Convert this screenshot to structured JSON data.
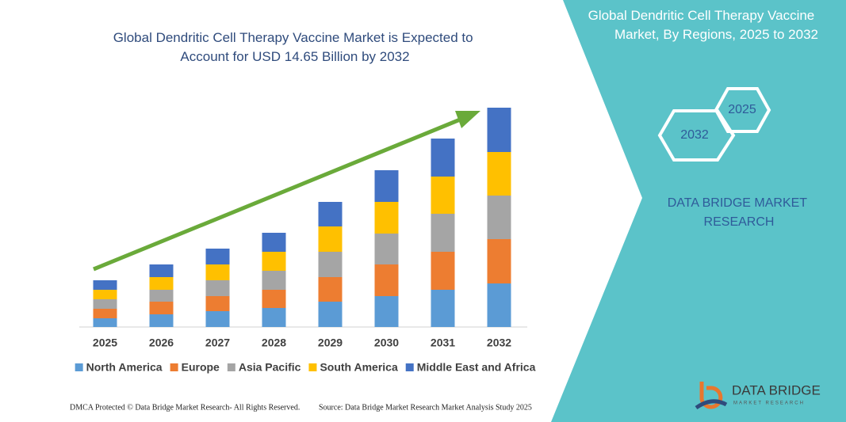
{
  "chart_data": {
    "type": "bar",
    "stacked": true,
    "title": "Global Dendritic Cell Therapy Vaccine Market is Expected to Account for USD 14.65 Billion by 2032",
    "categories": [
      "2025",
      "2026",
      "2027",
      "2028",
      "2029",
      "2030",
      "2031",
      "2032"
    ],
    "series": [
      {
        "name": "North America",
        "color": "#5b9bd5",
        "values": [
          11,
          16,
          20,
          24,
          32,
          39,
          47,
          55
        ]
      },
      {
        "name": "Europe",
        "color": "#ed7d31",
        "values": [
          12,
          16,
          19,
          23,
          31,
          40,
          48,
          56
        ]
      },
      {
        "name": "Asia Pacific",
        "color": "#a5a5a5",
        "values": [
          12,
          15,
          20,
          24,
          32,
          39,
          48,
          55
        ]
      },
      {
        "name": "South America",
        "color": "#ffc000",
        "values": [
          12,
          16,
          20,
          24,
          32,
          40,
          47,
          55
        ]
      },
      {
        "name": "Middle East and Africa",
        "color": "#4472c4",
        "values": [
          12,
          16,
          20,
          24,
          31,
          40,
          48,
          56
        ]
      }
    ]
  },
  "panel": {
    "title": "Global Dendritic Cell Therapy Vaccine Market, By Regions, 2025 to 2032",
    "hexagons": [
      "2025",
      "2032"
    ],
    "brand": "DATA BRIDGE MARKET RESEARCH"
  },
  "footer": {
    "left": "DMCA Protected © Data Bridge Market Research- All Rights Reserved.",
    "right": "Source: Data Bridge Market Research Market Analysis Study 2025"
  },
  "logo": {
    "name": "DATA BRIDGE",
    "sub": "MARKET RESEARCH"
  }
}
